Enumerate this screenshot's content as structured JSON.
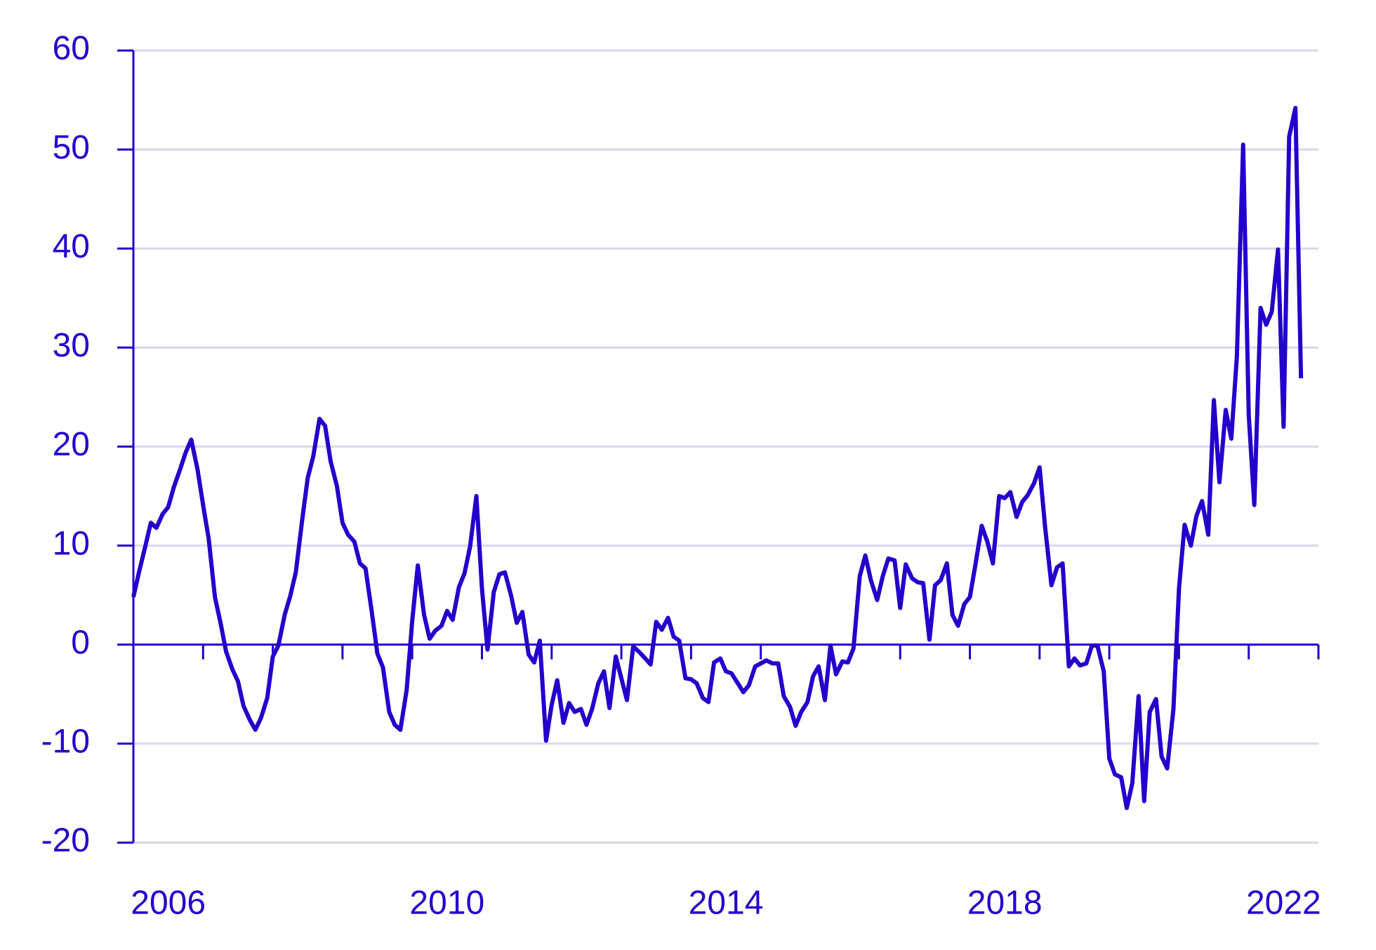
{
  "chart_data": {
    "type": "line",
    "x": [
      2006.0,
      2006.08,
      2006.17,
      2006.25,
      2006.33,
      2006.42,
      2006.5,
      2006.58,
      2006.67,
      2006.75,
      2006.83,
      2006.92,
      2007.0,
      2007.08,
      2007.17,
      2007.25,
      2007.33,
      2007.42,
      2007.5,
      2007.58,
      2007.67,
      2007.75,
      2007.83,
      2007.92,
      2008.0,
      2008.08,
      2008.17,
      2008.25,
      2008.33,
      2008.42,
      2008.5,
      2008.58,
      2008.67,
      2008.75,
      2008.83,
      2008.92,
      2009.0,
      2009.08,
      2009.17,
      2009.25,
      2009.33,
      2009.42,
      2009.5,
      2009.58,
      2009.67,
      2009.75,
      2009.83,
      2009.92,
      2010.0,
      2010.08,
      2010.17,
      2010.25,
      2010.33,
      2010.42,
      2010.5,
      2010.58,
      2010.67,
      2010.75,
      2010.83,
      2010.92,
      2011.0,
      2011.08,
      2011.17,
      2011.25,
      2011.33,
      2011.42,
      2011.5,
      2011.58,
      2011.67,
      2011.75,
      2011.83,
      2011.92,
      2012.0,
      2012.08,
      2012.17,
      2012.25,
      2012.33,
      2012.42,
      2012.5,
      2012.58,
      2012.67,
      2012.75,
      2012.83,
      2012.92,
      2013.0,
      2013.08,
      2013.17,
      2013.25,
      2013.33,
      2013.42,
      2013.5,
      2013.58,
      2013.67,
      2013.75,
      2013.83,
      2013.92,
      2014.0,
      2014.08,
      2014.17,
      2014.25,
      2014.33,
      2014.42,
      2014.5,
      2014.58,
      2014.67,
      2014.75,
      2014.83,
      2014.92,
      2015.0,
      2015.08,
      2015.17,
      2015.25,
      2015.33,
      2015.42,
      2015.5,
      2015.58,
      2015.67,
      2015.75,
      2015.83,
      2015.92,
      2016.0,
      2016.08,
      2016.17,
      2016.25,
      2016.33,
      2016.42,
      2016.5,
      2016.58,
      2016.67,
      2016.75,
      2016.83,
      2016.92,
      2017.0,
      2017.08,
      2017.17,
      2017.25,
      2017.33,
      2017.42,
      2017.5,
      2017.58,
      2017.67,
      2017.75,
      2017.83,
      2017.92,
      2018.0,
      2018.08,
      2018.17,
      2018.25,
      2018.33,
      2018.42,
      2018.5,
      2018.58,
      2018.67,
      2018.75,
      2018.83,
      2018.92,
      2019.0,
      2019.08,
      2019.17,
      2019.25,
      2019.33,
      2019.42,
      2019.5,
      2019.58,
      2019.67,
      2019.75,
      2019.83,
      2019.92,
      2020.0,
      2020.08,
      2020.17,
      2020.25,
      2020.33,
      2020.42,
      2020.5,
      2020.58,
      2020.67,
      2020.75,
      2020.83,
      2020.92,
      2021.0,
      2021.08,
      2021.17,
      2021.25,
      2021.33,
      2021.42,
      2021.5,
      2021.58,
      2021.67,
      2021.75,
      2021.83,
      2021.92,
      2022.0,
      2022.08,
      2022.17,
      2022.25,
      2022.33,
      2022.42,
      2022.5,
      2022.58,
      2022.67,
      2022.75
    ],
    "series": [
      {
        "color": "#2200cc",
        "values": [
          4.8,
          7.3,
          9.9,
          12.3,
          11.8,
          13.2,
          13.9,
          15.9,
          17.7,
          19.4,
          20.7,
          17.7,
          14.1,
          10.7,
          4.8,
          2.2,
          -0.7,
          -2.5,
          -3.7,
          -6.2,
          -7.6,
          -8.6,
          -7.4,
          -5.4,
          -1.2,
          -0.1,
          3.0,
          4.9,
          7.3,
          12.5,
          16.8,
          19.0,
          22.8,
          22.1,
          18.5,
          16.0,
          12.3,
          11.1,
          10.4,
          8.2,
          7.7,
          3.3,
          -0.9,
          -2.3,
          -6.8,
          -8.1,
          -8.6,
          -4.6,
          2.4,
          8.0,
          3.0,
          0.6,
          1.4,
          1.9,
          3.4,
          2.5,
          5.8,
          7.2,
          9.9,
          15.0,
          5.7,
          -0.5,
          5.3,
          7.1,
          7.3,
          4.9,
          2.2,
          3.3,
          -1.0,
          -1.8,
          0.4,
          -9.7,
          -6.1,
          -3.6,
          -7.9,
          -5.9,
          -6.8,
          -6.5,
          -8.1,
          -6.5,
          -3.9,
          -2.7,
          -6.4,
          -1.2,
          -3.4,
          -5.6,
          -0.2,
          -0.7,
          -1.3,
          -2.0,
          2.3,
          1.5,
          2.7,
          0.8,
          0.4,
          -3.4,
          -3.5,
          -3.9,
          -5.4,
          -5.8,
          -1.8,
          -1.4,
          -2.7,
          -2.9,
          -3.9,
          -4.8,
          -4.1,
          -2.2,
          -1.9,
          -1.6,
          -1.9,
          -1.9,
          -5.2,
          -6.3,
          -8.2,
          -6.8,
          -5.8,
          -3.2,
          -2.2,
          -5.6,
          -0.1,
          -3.0,
          -1.7,
          -1.8,
          -0.4,
          6.9,
          9.0,
          6.5,
          4.5,
          6.9,
          8.7,
          8.5,
          3.7,
          8.1,
          6.7,
          6.3,
          6.2,
          0.5,
          6.0,
          6.5,
          8.2,
          3.0,
          1.9,
          4.1,
          4.8,
          8.1,
          12.0,
          10.4,
          8.2,
          15.0,
          14.8,
          15.4,
          12.9,
          14.4,
          15.1,
          16.3,
          17.9,
          11.8,
          6.0,
          7.8,
          8.2,
          -2.2,
          -1.4,
          -2.1,
          -1.9,
          -0.1,
          -0.1,
          -2.7,
          -11.5,
          -13.1,
          -13.4,
          -16.5,
          -14.0,
          -5.2,
          -15.8,
          -6.8,
          -5.5,
          -11.3,
          -12.5,
          -6.5,
          5.7,
          12.1,
          10.0,
          13.0,
          14.5,
          11.1,
          24.7,
          16.4,
          23.7,
          20.8,
          29.1,
          50.5,
          23.2,
          14.1,
          34.0,
          32.3,
          33.6,
          39.9,
          22.0,
          51.3,
          54.2,
          26.9
        ]
      }
    ],
    "xlim": [
      2006,
      2023
    ],
    "xticks": [
      {
        "value": 2006,
        "label": "2006"
      },
      {
        "value": 2010,
        "label": "2010"
      },
      {
        "value": 2014,
        "label": "2014"
      },
      {
        "value": 2018,
        "label": "2018"
      },
      {
        "value": 2022,
        "label": "2022"
      }
    ],
    "xminor_ticks": [
      2007,
      2008,
      2009,
      2010,
      2011,
      2012,
      2013,
      2014,
      2015,
      2016,
      2017,
      2018,
      2019,
      2020,
      2021,
      2022,
      2023
    ],
    "ylim": [
      -20,
      60
    ],
    "yticks": [
      -20,
      -10,
      0,
      10,
      20,
      30,
      40,
      50,
      60
    ],
    "grid": true
  }
}
